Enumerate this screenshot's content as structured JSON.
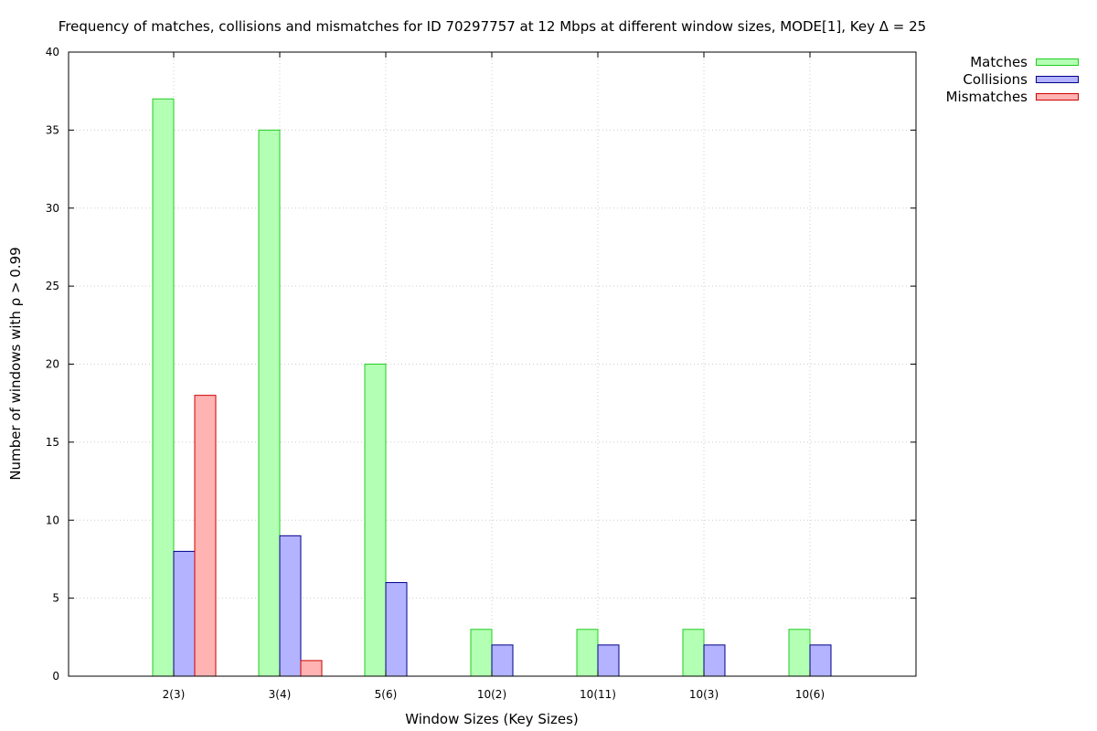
{
  "chart_data": {
    "type": "bar",
    "title": "Frequency of matches, collisions and mismatches for ID 70297757 at 12 Mbps at different window sizes, MODE[1], Key Δ = 25",
    "xlabel": "Window Sizes (Key Sizes)",
    "ylabel": "Number of windows with ρ > 0.99",
    "ylim": [
      0,
      40
    ],
    "yticks": [
      0,
      5,
      10,
      15,
      20,
      25,
      30,
      35,
      40
    ],
    "grid": true,
    "legend_position": "top-right outside",
    "categories": [
      "2(3)",
      "3(4)",
      "5(6)",
      "10(2)",
      "10(11)",
      "10(3)",
      "10(6)"
    ],
    "series": [
      {
        "name": "Matches",
        "values": [
          37,
          35,
          20,
          3,
          3,
          3,
          3
        ],
        "fill": "#b3ffb3",
        "stroke": "#22cc22"
      },
      {
        "name": "Collisions",
        "values": [
          8,
          9,
          6,
          2,
          2,
          2,
          2
        ],
        "fill": "#b3b3ff",
        "stroke": "#00008b"
      },
      {
        "name": "Mismatches",
        "values": [
          18,
          1,
          0,
          0,
          0,
          0,
          0
        ],
        "fill": "#ffb3b3",
        "stroke": "#cc0000"
      }
    ]
  }
}
